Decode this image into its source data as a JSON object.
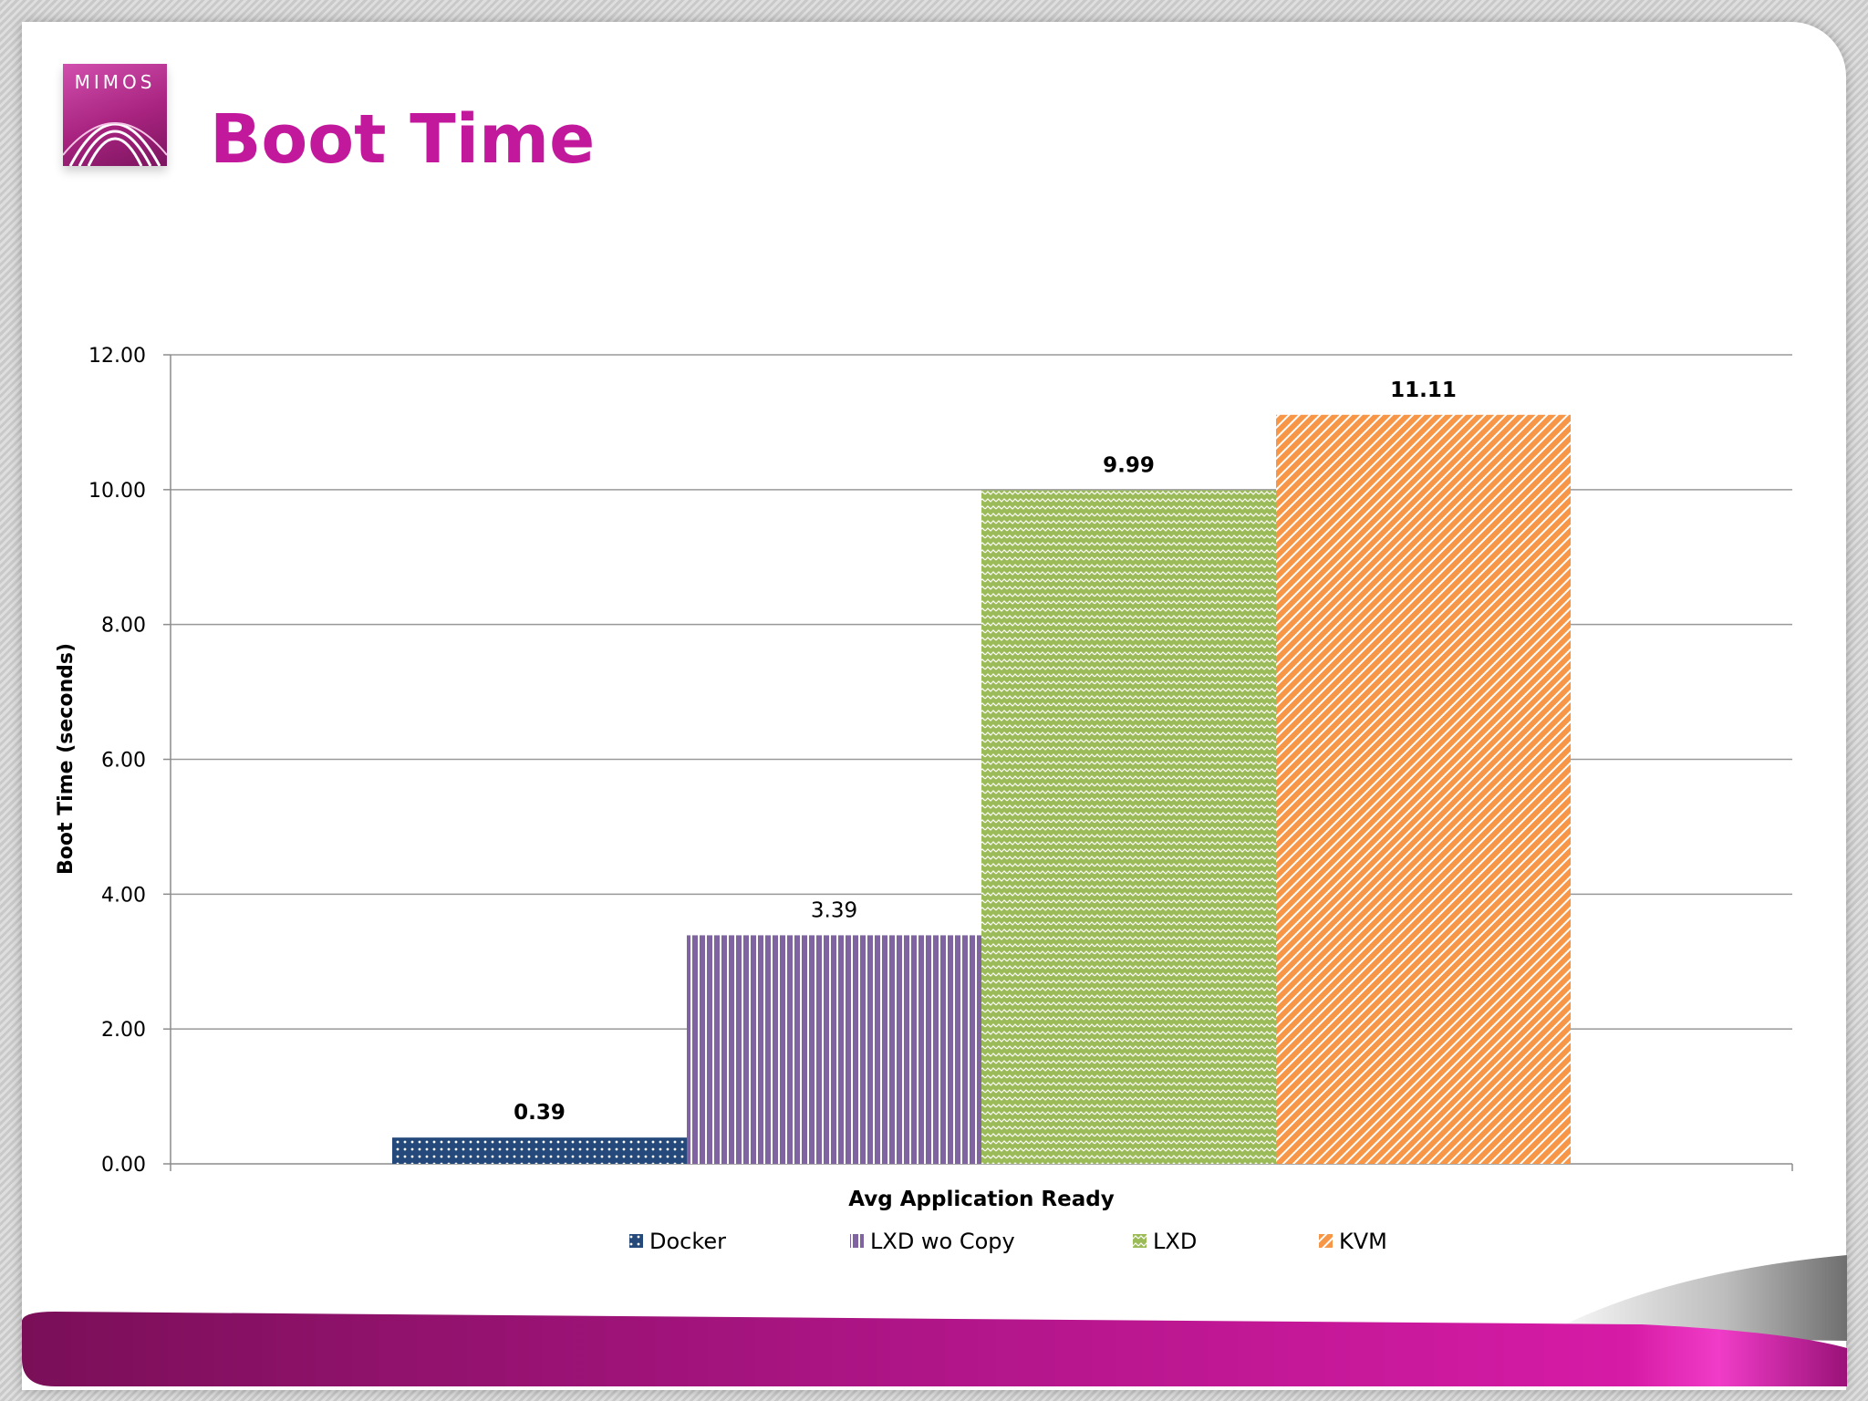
{
  "slide": {
    "title": "Boot Time",
    "logo_text": "MIMOS",
    "brand_color": "#c2189b"
  },
  "chart_data": {
    "type": "bar",
    "title": "",
    "xlabel": "Avg Application Ready",
    "ylabel": "Boot Time (seconds)",
    "ylim": [
      0,
      12
    ],
    "yticks": [
      "0.00",
      "2.00",
      "4.00",
      "6.00",
      "8.00",
      "10.00",
      "12.00"
    ],
    "grid": true,
    "legend_position": "bottom",
    "categories": [
      "Avg Application Ready"
    ],
    "series": [
      {
        "name": "Docker",
        "values": [
          0.39
        ],
        "label": "0.39",
        "label_bold": true,
        "color": "#24497a",
        "pattern": "dots"
      },
      {
        "name": "LXD wo Copy",
        "values": [
          3.39
        ],
        "label": "3.39",
        "label_bold": false,
        "color": "#8064a2",
        "pattern": "vertical-lines"
      },
      {
        "name": "LXD",
        "values": [
          9.99
        ],
        "label": "9.99",
        "label_bold": true,
        "color": "#9bbb59",
        "pattern": "zigzag"
      },
      {
        "name": "KVM",
        "values": [
          11.11
        ],
        "label": "11.11",
        "label_bold": true,
        "color": "#f79646",
        "pattern": "diagonal-stripes"
      }
    ]
  }
}
